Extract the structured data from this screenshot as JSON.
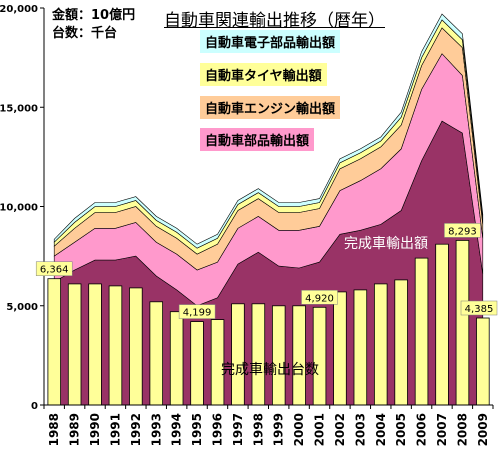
{
  "units": {
    "amount": "金額：10億円",
    "count": "台数：千台"
  },
  "title": "自動車関連輸出推移（暦年）",
  "colors": {
    "vehicle_amount": "#993366",
    "parts": "#ff99cc",
    "engine": "#ffcc99",
    "tire": "#ffff99",
    "electronics": "#ccffff",
    "units_bar": "#ffff99",
    "axis": "#000000"
  },
  "chart_data": {
    "type": "area",
    "x": [
      "1988",
      "1989",
      "1990",
      "1991",
      "1992",
      "1993",
      "1994",
      "1995",
      "1996",
      "1997",
      "1998",
      "1999",
      "2000",
      "2001",
      "2002",
      "2003",
      "2004",
      "2005",
      "2006",
      "2007",
      "2008",
      "2009"
    ],
    "ylim": [
      0,
      20000
    ],
    "yticks": [
      "0",
      "5,000",
      "10,000",
      "15,000",
      "20,000"
    ],
    "series": [
      {
        "name": "完成車輸出額",
        "kind": "area",
        "color": "#993366",
        "values": [
          6200,
          6800,
          7300,
          7300,
          7500,
          6500,
          5800,
          5000,
          5400,
          7100,
          7700,
          7000,
          6900,
          7200,
          8600,
          8800,
          9100,
          9800,
          12300,
          14300,
          13700,
          6600
        ]
      },
      {
        "name": "自動車部品輸出額",
        "kind": "area",
        "color": "#ff99cc",
        "values": [
          1300,
          1400,
          1600,
          1600,
          1700,
          1700,
          1800,
          1800,
          1800,
          1800,
          1800,
          1800,
          1900,
          1800,
          2200,
          2500,
          2800,
          3100,
          3600,
          3400,
          2900,
          1800
        ]
      },
      {
        "name": "自動車エンジン輸出額",
        "kind": "area",
        "color": "#ffcc99",
        "values": [
          500,
          700,
          800,
          800,
          800,
          800,
          800,
          800,
          900,
          900,
          900,
          900,
          900,
          900,
          1100,
          1100,
          1100,
          1200,
          1200,
          1300,
          1400,
          700
        ]
      },
      {
        "name": "自動車タイヤ輸出額",
        "kind": "area",
        "color": "#ffff99",
        "values": [
          200,
          300,
          300,
          300,
          300,
          300,
          300,
          300,
          300,
          300,
          300,
          300,
          300,
          300,
          300,
          300,
          300,
          400,
          400,
          400,
          400,
          300
        ]
      },
      {
        "name": "自動車電子部品輸出額",
        "kind": "area",
        "color": "#ccffff",
        "values": [
          150,
          200,
          200,
          200,
          200,
          200,
          200,
          200,
          200,
          200,
          200,
          200,
          200,
          200,
          200,
          200,
          200,
          250,
          300,
          300,
          300,
          200
        ]
      },
      {
        "name": "完成車輸出台数",
        "kind": "bar",
        "color": "#ffff99",
        "values": [
          6364,
          6100,
          6100,
          6000,
          5900,
          5200,
          4700,
          4199,
          4300,
          5100,
          5100,
          5000,
          5000,
          4920,
          5700,
          5800,
          6100,
          6300,
          7400,
          8100,
          8293,
          4385
        ]
      }
    ],
    "data_labels": [
      {
        "year": "1988",
        "text": "6,364"
      },
      {
        "year": "1995",
        "text": "4,199"
      },
      {
        "year": "2001",
        "text": "4,920"
      },
      {
        "year": "2008",
        "text": "8,293"
      },
      {
        "year": "2009",
        "text": "4,385"
      }
    ]
  }
}
